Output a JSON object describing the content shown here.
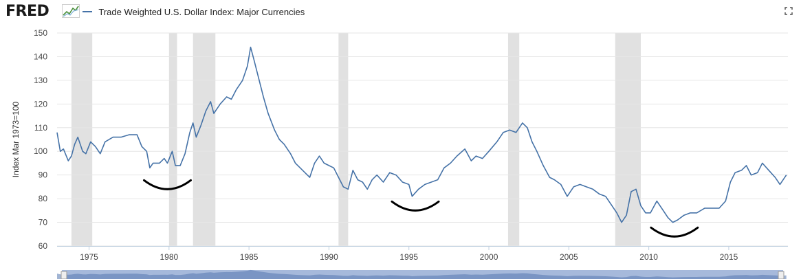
{
  "header": {
    "logo_text": "FRED",
    "legend_label": "Trade Weighted U.S. Dollar Index: Major Currencies",
    "series_color": "#4572a7"
  },
  "icons": {
    "logo_chart": "fred-logo-chart-icon",
    "fullscreen": "fullscreen-icon"
  },
  "chart_data": {
    "type": "line",
    "title": "",
    "xlabel": "",
    "ylabel": "Index Mar 1973=100",
    "xlim": [
      1973,
      2018.7
    ],
    "ylim": [
      60,
      150
    ],
    "y_ticks": [
      60,
      70,
      80,
      90,
      100,
      110,
      120,
      130,
      140,
      150
    ],
    "x_ticks": [
      "1975",
      "1980",
      "1985",
      "1990",
      "1995",
      "2000",
      "2005",
      "2010",
      "2015"
    ],
    "grid": "horizontal",
    "recession_shading": [
      [
        1973.9,
        1975.2
      ],
      [
        1980.0,
        1980.5
      ],
      [
        1981.5,
        1982.9
      ],
      [
        1990.6,
        1991.2
      ],
      [
        2001.2,
        2001.9
      ],
      [
        2007.9,
        2009.5
      ]
    ],
    "recession_color": "#e1e1e1",
    "series": [
      {
        "values": [
          [
            1973.0,
            108
          ],
          [
            1973.2,
            100
          ],
          [
            1973.4,
            101
          ],
          [
            1973.7,
            96
          ],
          [
            1973.9,
            98
          ],
          [
            1974.1,
            103
          ],
          [
            1974.3,
            106
          ],
          [
            1974.6,
            100
          ],
          [
            1974.8,
            99
          ],
          [
            1975.1,
            104
          ],
          [
            1975.4,
            102
          ],
          [
            1975.7,
            99
          ],
          [
            1976.0,
            104
          ],
          [
            1976.5,
            106
          ],
          [
            1977.0,
            106
          ],
          [
            1977.5,
            107
          ],
          [
            1978.0,
            107
          ],
          [
            1978.3,
            102
          ],
          [
            1978.6,
            100
          ],
          [
            1978.8,
            93
          ],
          [
            1979.0,
            95
          ],
          [
            1979.4,
            95
          ],
          [
            1979.7,
            97
          ],
          [
            1979.9,
            95
          ],
          [
            1980.2,
            100
          ],
          [
            1980.4,
            94
          ],
          [
            1980.7,
            94
          ],
          [
            1981.0,
            99
          ],
          [
            1981.3,
            108
          ],
          [
            1981.5,
            112
          ],
          [
            1981.7,
            106
          ],
          [
            1982.0,
            111
          ],
          [
            1982.3,
            117
          ],
          [
            1982.6,
            121
          ],
          [
            1982.8,
            116
          ],
          [
            1983.2,
            120
          ],
          [
            1983.6,
            123
          ],
          [
            1983.9,
            122
          ],
          [
            1984.2,
            126
          ],
          [
            1984.6,
            130
          ],
          [
            1984.9,
            136
          ],
          [
            1985.1,
            144
          ],
          [
            1985.3,
            139
          ],
          [
            1985.6,
            131
          ],
          [
            1985.9,
            123
          ],
          [
            1986.2,
            116
          ],
          [
            1986.6,
            109
          ],
          [
            1986.9,
            105
          ],
          [
            1987.2,
            103
          ],
          [
            1987.6,
            99
          ],
          [
            1987.9,
            95
          ],
          [
            1988.2,
            93
          ],
          [
            1988.5,
            91
          ],
          [
            1988.8,
            89
          ],
          [
            1989.1,
            95
          ],
          [
            1989.4,
            98
          ],
          [
            1989.7,
            95
          ],
          [
            1990.0,
            94
          ],
          [
            1990.3,
            93
          ],
          [
            1990.6,
            89
          ],
          [
            1990.9,
            85
          ],
          [
            1991.2,
            84
          ],
          [
            1991.5,
            92
          ],
          [
            1991.8,
            88
          ],
          [
            1992.1,
            87
          ],
          [
            1992.4,
            84
          ],
          [
            1992.7,
            88
          ],
          [
            1993.0,
            90
          ],
          [
            1993.4,
            87
          ],
          [
            1993.8,
            91
          ],
          [
            1994.2,
            90
          ],
          [
            1994.6,
            87
          ],
          [
            1995.0,
            86
          ],
          [
            1995.2,
            81
          ],
          [
            1995.6,
            84
          ],
          [
            1996.0,
            86
          ],
          [
            1996.4,
            87
          ],
          [
            1996.8,
            88
          ],
          [
            1997.2,
            93
          ],
          [
            1997.6,
            95
          ],
          [
            1998.0,
            98
          ],
          [
            1998.5,
            101
          ],
          [
            1998.9,
            96
          ],
          [
            1999.2,
            98
          ],
          [
            1999.6,
            97
          ],
          [
            2000.0,
            100
          ],
          [
            2000.5,
            104
          ],
          [
            2000.9,
            108
          ],
          [
            2001.3,
            109
          ],
          [
            2001.7,
            108
          ],
          [
            2002.1,
            112
          ],
          [
            2002.4,
            110
          ],
          [
            2002.7,
            104
          ],
          [
            2003.0,
            100
          ],
          [
            2003.4,
            94
          ],
          [
            2003.8,
            89
          ],
          [
            2004.1,
            88
          ],
          [
            2004.5,
            86
          ],
          [
            2004.9,
            81
          ],
          [
            2005.3,
            85
          ],
          [
            2005.7,
            86
          ],
          [
            2006.1,
            85
          ],
          [
            2006.5,
            84
          ],
          [
            2006.9,
            82
          ],
          [
            2007.3,
            81
          ],
          [
            2007.7,
            77
          ],
          [
            2008.0,
            74
          ],
          [
            2008.3,
            70
          ],
          [
            2008.6,
            73
          ],
          [
            2008.9,
            83
          ],
          [
            2009.2,
            84
          ],
          [
            2009.5,
            77
          ],
          [
            2009.8,
            74
          ],
          [
            2010.1,
            74
          ],
          [
            2010.5,
            79
          ],
          [
            2010.9,
            75
          ],
          [
            2011.2,
            72
          ],
          [
            2011.5,
            70
          ],
          [
            2011.8,
            71
          ],
          [
            2012.2,
            73
          ],
          [
            2012.6,
            74
          ],
          [
            2013.0,
            74
          ],
          [
            2013.5,
            76
          ],
          [
            2014.0,
            76
          ],
          [
            2014.4,
            76
          ],
          [
            2014.8,
            79
          ],
          [
            2015.1,
            87
          ],
          [
            2015.4,
            91
          ],
          [
            2015.8,
            92
          ],
          [
            2016.1,
            94
          ],
          [
            2016.4,
            90
          ],
          [
            2016.8,
            91
          ],
          [
            2017.1,
            95
          ],
          [
            2017.5,
            92
          ],
          [
            2017.9,
            89
          ],
          [
            2018.2,
            86
          ],
          [
            2018.6,
            90
          ]
        ]
      }
    ],
    "annotations": [
      {
        "type": "trough-arc",
        "center_year": 1979.9,
        "center_value": 84
      },
      {
        "type": "trough-arc",
        "center_year": 1995.4,
        "center_value": 75
      },
      {
        "type": "trough-arc",
        "center_year": 2011.6,
        "center_value": 64
      }
    ],
    "navigator_color": "#a6b9db"
  }
}
